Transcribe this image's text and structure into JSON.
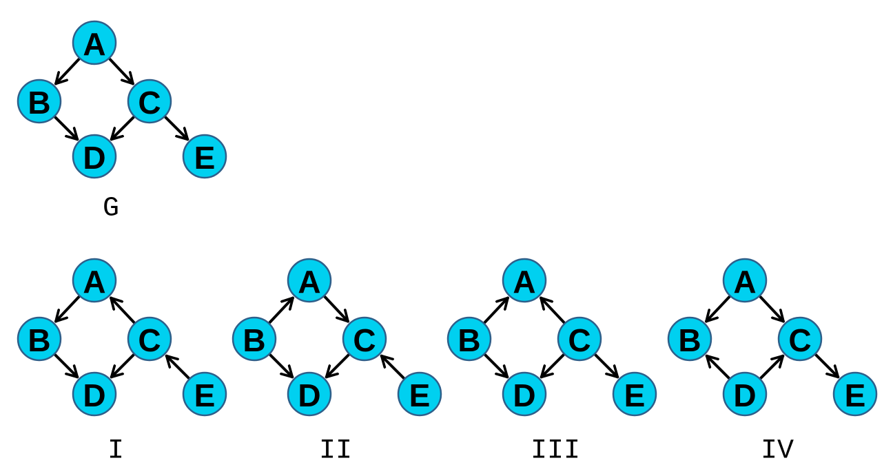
{
  "style": {
    "node_fill": "#00d0f0",
    "node_stroke": "#2e5f8a",
    "edge_color": "#000000"
  },
  "graphs": [
    {
      "id": "G",
      "caption": "G",
      "edges": [
        [
          "A",
          "B"
        ],
        [
          "A",
          "C"
        ],
        [
          "B",
          "D"
        ],
        [
          "C",
          "D"
        ],
        [
          "C",
          "E"
        ]
      ]
    },
    {
      "id": "I",
      "caption": "I",
      "edges": [
        [
          "A",
          "B"
        ],
        [
          "C",
          "A"
        ],
        [
          "B",
          "D"
        ],
        [
          "C",
          "D"
        ],
        [
          "E",
          "C"
        ]
      ]
    },
    {
      "id": "II",
      "caption": "II",
      "edges": [
        [
          "B",
          "A"
        ],
        [
          "A",
          "C"
        ],
        [
          "B",
          "D"
        ],
        [
          "C",
          "D"
        ],
        [
          "E",
          "C"
        ]
      ]
    },
    {
      "id": "III",
      "caption": "III",
      "edges": [
        [
          "B",
          "A"
        ],
        [
          "C",
          "A"
        ],
        [
          "B",
          "D"
        ],
        [
          "C",
          "D"
        ],
        [
          "C",
          "E"
        ]
      ]
    },
    {
      "id": "IV",
      "caption": "IV",
      "edges": [
        [
          "A",
          "B"
        ],
        [
          "A",
          "C"
        ],
        [
          "D",
          "B"
        ],
        [
          "D",
          "C"
        ],
        [
          "C",
          "E"
        ]
      ]
    }
  ],
  "node_labels": [
    "A",
    "B",
    "C",
    "D",
    "E"
  ]
}
